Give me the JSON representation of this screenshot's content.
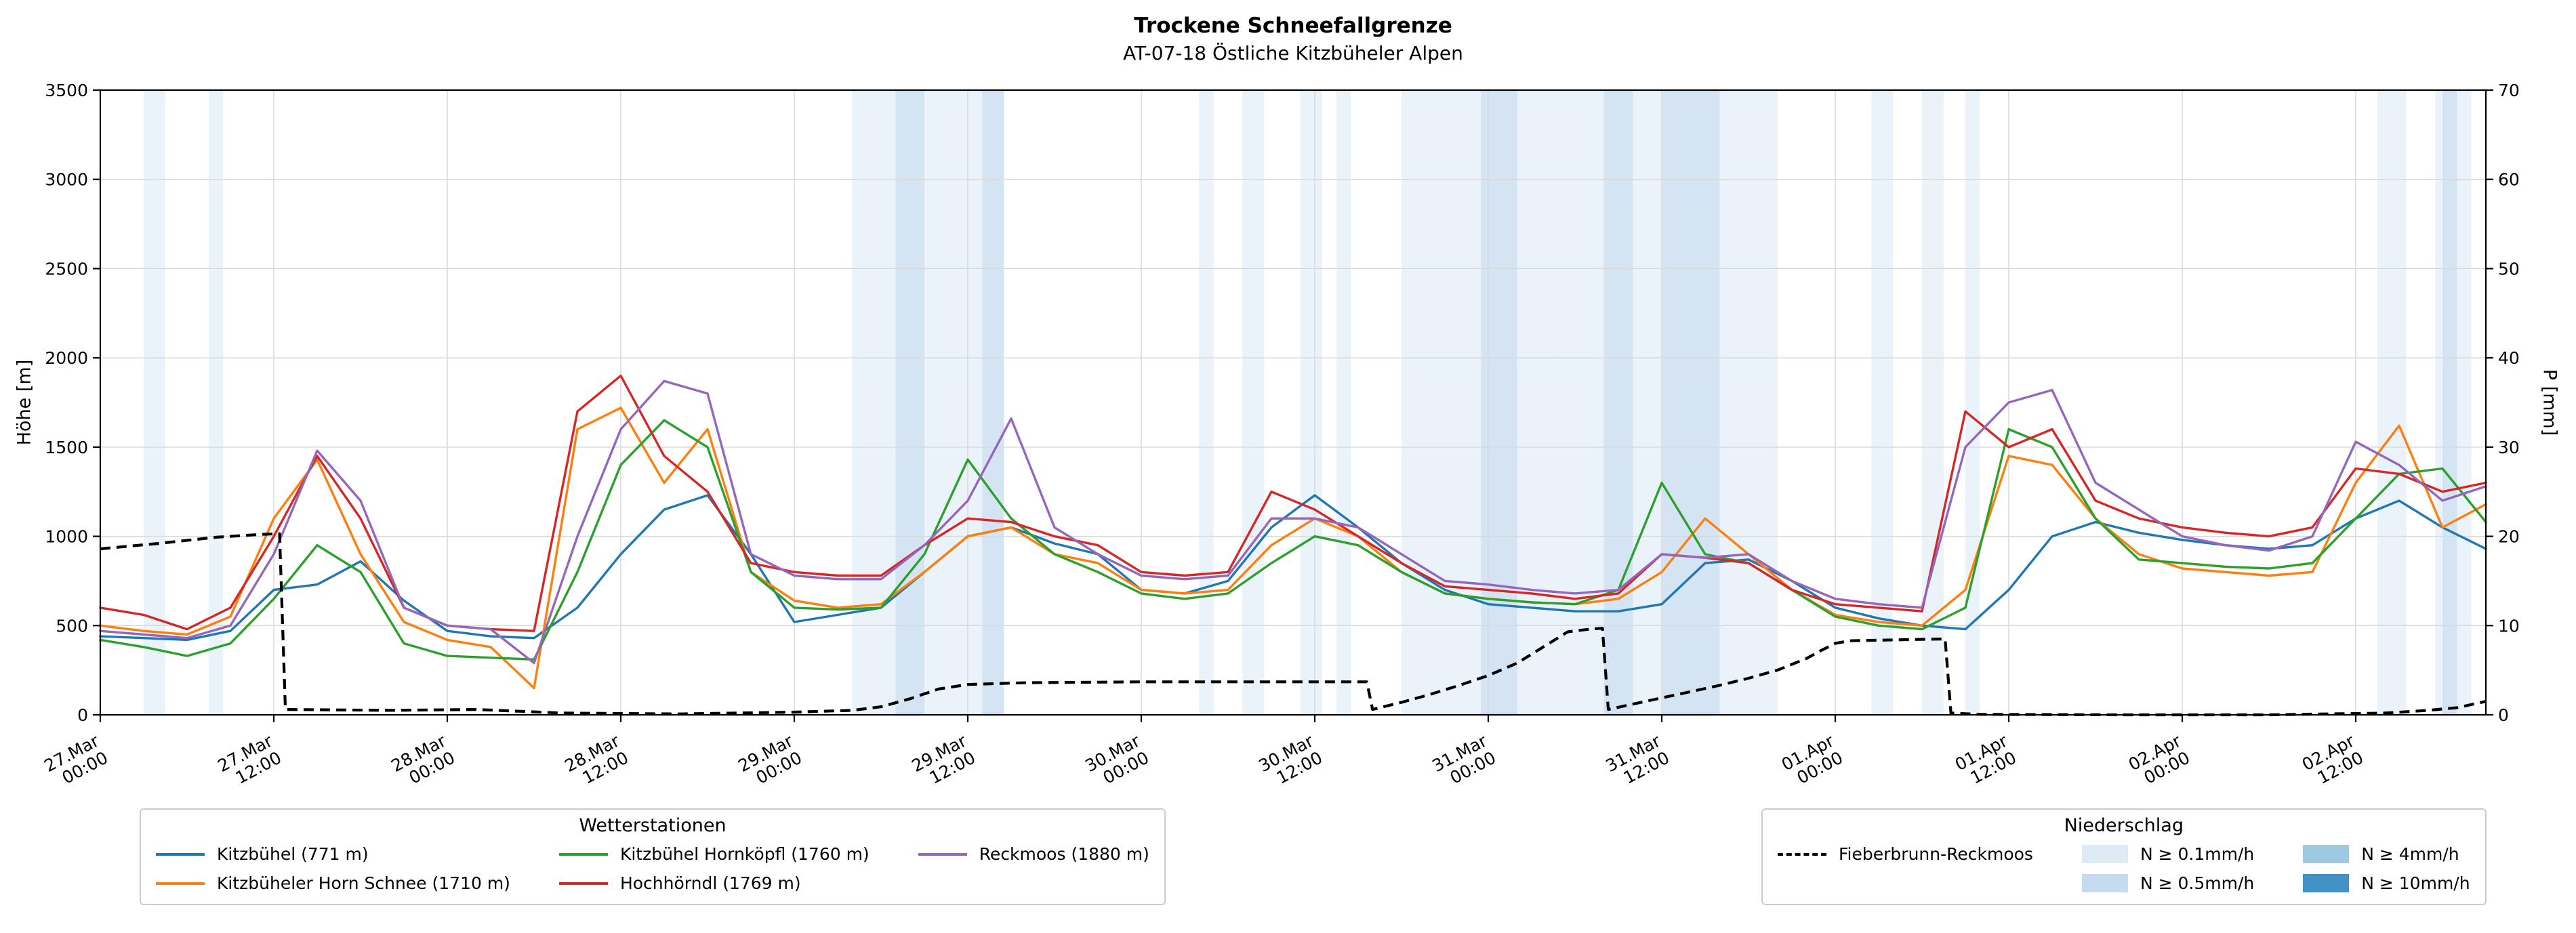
{
  "chart_data": {
    "type": "line",
    "title": "Trockene Schneefallgrenze",
    "subtitle": "AT-07-18 Östliche Kitzbüheler Alpen",
    "y_left": {
      "label": "Höhe [m]",
      "range": [
        0,
        3500
      ],
      "ticks": [
        0,
        500,
        1000,
        1500,
        2000,
        2500,
        3000,
        3500
      ]
    },
    "y_right": {
      "label": "P [mm]",
      "range": [
        0,
        70
      ],
      "ticks": [
        0,
        10,
        20,
        30,
        40,
        50,
        60,
        70
      ]
    },
    "x": {
      "range_hours": [
        0,
        165
      ],
      "ticks": [
        {
          "h": 0,
          "line1": "27.Mar",
          "line2": "00:00"
        },
        {
          "h": 12,
          "line1": "27.Mar",
          "line2": "12:00"
        },
        {
          "h": 24,
          "line1": "28.Mar",
          "line2": "00:00"
        },
        {
          "h": 36,
          "line1": "28.Mar",
          "line2": "12:00"
        },
        {
          "h": 48,
          "line1": "29.Mar",
          "line2": "00:00"
        },
        {
          "h": 60,
          "line1": "29.Mar",
          "line2": "12:00"
        },
        {
          "h": 72,
          "line1": "30.Mar",
          "line2": "00:00"
        },
        {
          "h": 84,
          "line1": "30.Mar",
          "line2": "12:00"
        },
        {
          "h": 96,
          "line1": "31.Mar",
          "line2": "00:00"
        },
        {
          "h": 108,
          "line1": "31.Mar",
          "line2": "12:00"
        },
        {
          "h": 120,
          "line1": "01.Apr",
          "line2": "00:00"
        },
        {
          "h": 132,
          "line1": "01.Apr",
          "line2": "12:00"
        },
        {
          "h": 144,
          "line1": "02.Apr",
          "line2": "00:00"
        },
        {
          "h": 156,
          "line1": "02.Apr",
          "line2": "12:00"
        }
      ]
    },
    "x_hours": [
      0,
      3,
      6,
      9,
      12,
      15,
      18,
      21,
      24,
      27,
      30,
      33,
      36,
      39,
      42,
      45,
      48,
      51,
      54,
      57,
      60,
      63,
      66,
      69,
      72,
      75,
      78,
      81,
      84,
      87,
      90,
      93,
      96,
      99,
      102,
      105,
      108,
      111,
      114,
      117,
      120,
      123,
      126,
      129,
      132,
      135,
      138,
      141,
      144,
      147,
      150,
      153,
      156,
      159,
      162,
      165
    ],
    "series": [
      {
        "name": "Kitzbühel (771 m)",
        "color": "#1f77b4",
        "values": [
          440,
          430,
          420,
          470,
          700,
          730,
          860,
          640,
          470,
          440,
          430,
          600,
          900,
          1150,
          1230,
          900,
          520,
          560,
          600,
          800,
          1000,
          1050,
          960,
          900,
          700,
          680,
          750,
          1050,
          1230,
          1050,
          850,
          700,
          620,
          600,
          580,
          580,
          620,
          850,
          870,
          750,
          600,
          540,
          500,
          480,
          700,
          1000,
          1080,
          1020,
          980,
          950,
          930,
          950,
          1100,
          1200,
          1050,
          930
        ]
      },
      {
        "name": "Kitzbüheler Horn Schnee (1710 m)",
        "color": "#ff7f0e",
        "values": [
          500,
          470,
          450,
          550,
          1100,
          1430,
          900,
          520,
          420,
          380,
          150,
          1600,
          1720,
          1300,
          1600,
          800,
          640,
          600,
          620,
          800,
          1000,
          1050,
          900,
          850,
          700,
          680,
          700,
          950,
          1100,
          1000,
          800,
          680,
          650,
          630,
          620,
          650,
          800,
          1100,
          900,
          700,
          560,
          520,
          500,
          700,
          1450,
          1400,
          1100,
          900,
          820,
          800,
          780,
          800,
          1300,
          1620,
          1050,
          1180
        ]
      },
      {
        "name": "Kitzbühel Hornköpfl (1760 m)",
        "color": "#2ca02c",
        "values": [
          420,
          380,
          330,
          400,
          650,
          950,
          800,
          400,
          330,
          320,
          310,
          800,
          1400,
          1650,
          1500,
          800,
          600,
          590,
          600,
          900,
          1430,
          1100,
          900,
          800,
          680,
          650,
          680,
          850,
          1000,
          950,
          800,
          680,
          650,
          630,
          620,
          700,
          1300,
          900,
          850,
          700,
          550,
          500,
          480,
          600,
          1600,
          1500,
          1100,
          870,
          850,
          830,
          820,
          850,
          1100,
          1350,
          1380,
          1080
        ]
      },
      {
        "name": "Hochhörndl (1769 m)",
        "color": "#d62728",
        "values": [
          600,
          560,
          480,
          600,
          1000,
          1450,
          1100,
          600,
          500,
          480,
          470,
          1700,
          1900,
          1450,
          1250,
          850,
          800,
          780,
          780,
          950,
          1100,
          1080,
          1000,
          950,
          800,
          780,
          800,
          1250,
          1150,
          1000,
          850,
          720,
          700,
          680,
          650,
          680,
          900,
          880,
          850,
          700,
          620,
          600,
          580,
          1700,
          1500,
          1600,
          1200,
          1100,
          1050,
          1020,
          1000,
          1050,
          1380,
          1350,
          1250,
          1300
        ]
      },
      {
        "name": "Reckmoos (1880 m)",
        "color": "#9467bd",
        "values": [
          470,
          450,
          430,
          500,
          900,
          1480,
          1200,
          600,
          500,
          480,
          290,
          1000,
          1600,
          1870,
          1800,
          900,
          780,
          760,
          760,
          950,
          1200,
          1660,
          1050,
          900,
          780,
          760,
          780,
          1100,
          1100,
          1050,
          900,
          750,
          730,
          700,
          680,
          700,
          900,
          880,
          900,
          750,
          650,
          620,
          600,
          1500,
          1750,
          1820,
          1300,
          1150,
          1000,
          950,
          920,
          1000,
          1530,
          1400,
          1200,
          1280
        ]
      }
    ],
    "precip_line": {
      "name": "Fieberbrunn-Reckmoos",
      "color": "#000000",
      "dashed": true,
      "points": [
        [
          0,
          18.6
        ],
        [
          4,
          19.2
        ],
        [
          8,
          19.9
        ],
        [
          11,
          20.2
        ],
        [
          12.4,
          20.3
        ],
        [
          12.8,
          0.6
        ],
        [
          20,
          0.5
        ],
        [
          26,
          0.6
        ],
        [
          32,
          0.2
        ],
        [
          40,
          0.1
        ],
        [
          48,
          0.3
        ],
        [
          52,
          0.5
        ],
        [
          54,
          0.9
        ],
        [
          56,
          1.8
        ],
        [
          58,
          2.9
        ],
        [
          60,
          3.4
        ],
        [
          64,
          3.6
        ],
        [
          72,
          3.7
        ],
        [
          80,
          3.7
        ],
        [
          87.6,
          3.7
        ],
        [
          88,
          0.6
        ],
        [
          90,
          1.4
        ],
        [
          92,
          2.3
        ],
        [
          94,
          3.3
        ],
        [
          96,
          4.4
        ],
        [
          98,
          5.8
        ],
        [
          100,
          7.8
        ],
        [
          101.5,
          9.3
        ],
        [
          103,
          9.6
        ],
        [
          103.9,
          9.7
        ],
        [
          104.3,
          0.6
        ],
        [
          106,
          1.2
        ],
        [
          108,
          1.9
        ],
        [
          110,
          2.6
        ],
        [
          112,
          3.3
        ],
        [
          114,
          4.1
        ],
        [
          116,
          5.0
        ],
        [
          118,
          6.3
        ],
        [
          119,
          7.2
        ],
        [
          120,
          8.0
        ],
        [
          121,
          8.3
        ],
        [
          124,
          8.4
        ],
        [
          127.6,
          8.5
        ],
        [
          128,
          0.2
        ],
        [
          130,
          0.05
        ],
        [
          140,
          0
        ],
        [
          150,
          0
        ],
        [
          154,
          0.1
        ],
        [
          158,
          0.2
        ],
        [
          161,
          0.5
        ],
        [
          163,
          0.8
        ],
        [
          165,
          1.5
        ]
      ]
    },
    "precip_bands": [
      {
        "start": 3,
        "end": 4.5,
        "level": "0.1"
      },
      {
        "start": 7.5,
        "end": 8.5,
        "level": "0.1"
      },
      {
        "start": 52,
        "end": 62.5,
        "level": "0.1"
      },
      {
        "start": 55,
        "end": 57,
        "level": "0.5"
      },
      {
        "start": 61,
        "end": 62.5,
        "level": "0.5"
      },
      {
        "start": 76,
        "end": 77,
        "level": "0.1"
      },
      {
        "start": 79,
        "end": 80.5,
        "level": "0.1"
      },
      {
        "start": 83,
        "end": 84.5,
        "level": "0.1"
      },
      {
        "start": 85.5,
        "end": 86.5,
        "level": "0.1"
      },
      {
        "start": 90,
        "end": 101,
        "level": "0.1"
      },
      {
        "start": 95.5,
        "end": 98,
        "level": "0.5"
      },
      {
        "start": 101,
        "end": 116,
        "level": "0.1"
      },
      {
        "start": 104,
        "end": 106,
        "level": "0.5"
      },
      {
        "start": 108,
        "end": 112,
        "level": "0.5"
      },
      {
        "start": 122.5,
        "end": 124,
        "level": "0.1"
      },
      {
        "start": 126,
        "end": 127.5,
        "level": "0.1"
      },
      {
        "start": 129,
        "end": 130,
        "level": "0.1"
      },
      {
        "start": 157.5,
        "end": 159.5,
        "level": "0.1"
      },
      {
        "start": 161.5,
        "end": 164,
        "level": "0.1"
      },
      {
        "start": 162,
        "end": 163,
        "level": "0.5"
      }
    ],
    "band_levels": [
      {
        "label": "N ≥ 0.1mm/h",
        "level": "0.1",
        "color": "#deebf7"
      },
      {
        "label": "N ≥ 0.5mm/h",
        "level": "0.5",
        "color": "#c6dbef"
      },
      {
        "label": "N ≥ 4mm/h",
        "level": "4",
        "color": "#9ecae1"
      },
      {
        "label": "N ≥ 10mm/h",
        "level": "10",
        "color": "#4292c6"
      }
    ],
    "legends": {
      "stations_title": "Wetterstationen",
      "precip_title": "Niederschlag"
    }
  }
}
